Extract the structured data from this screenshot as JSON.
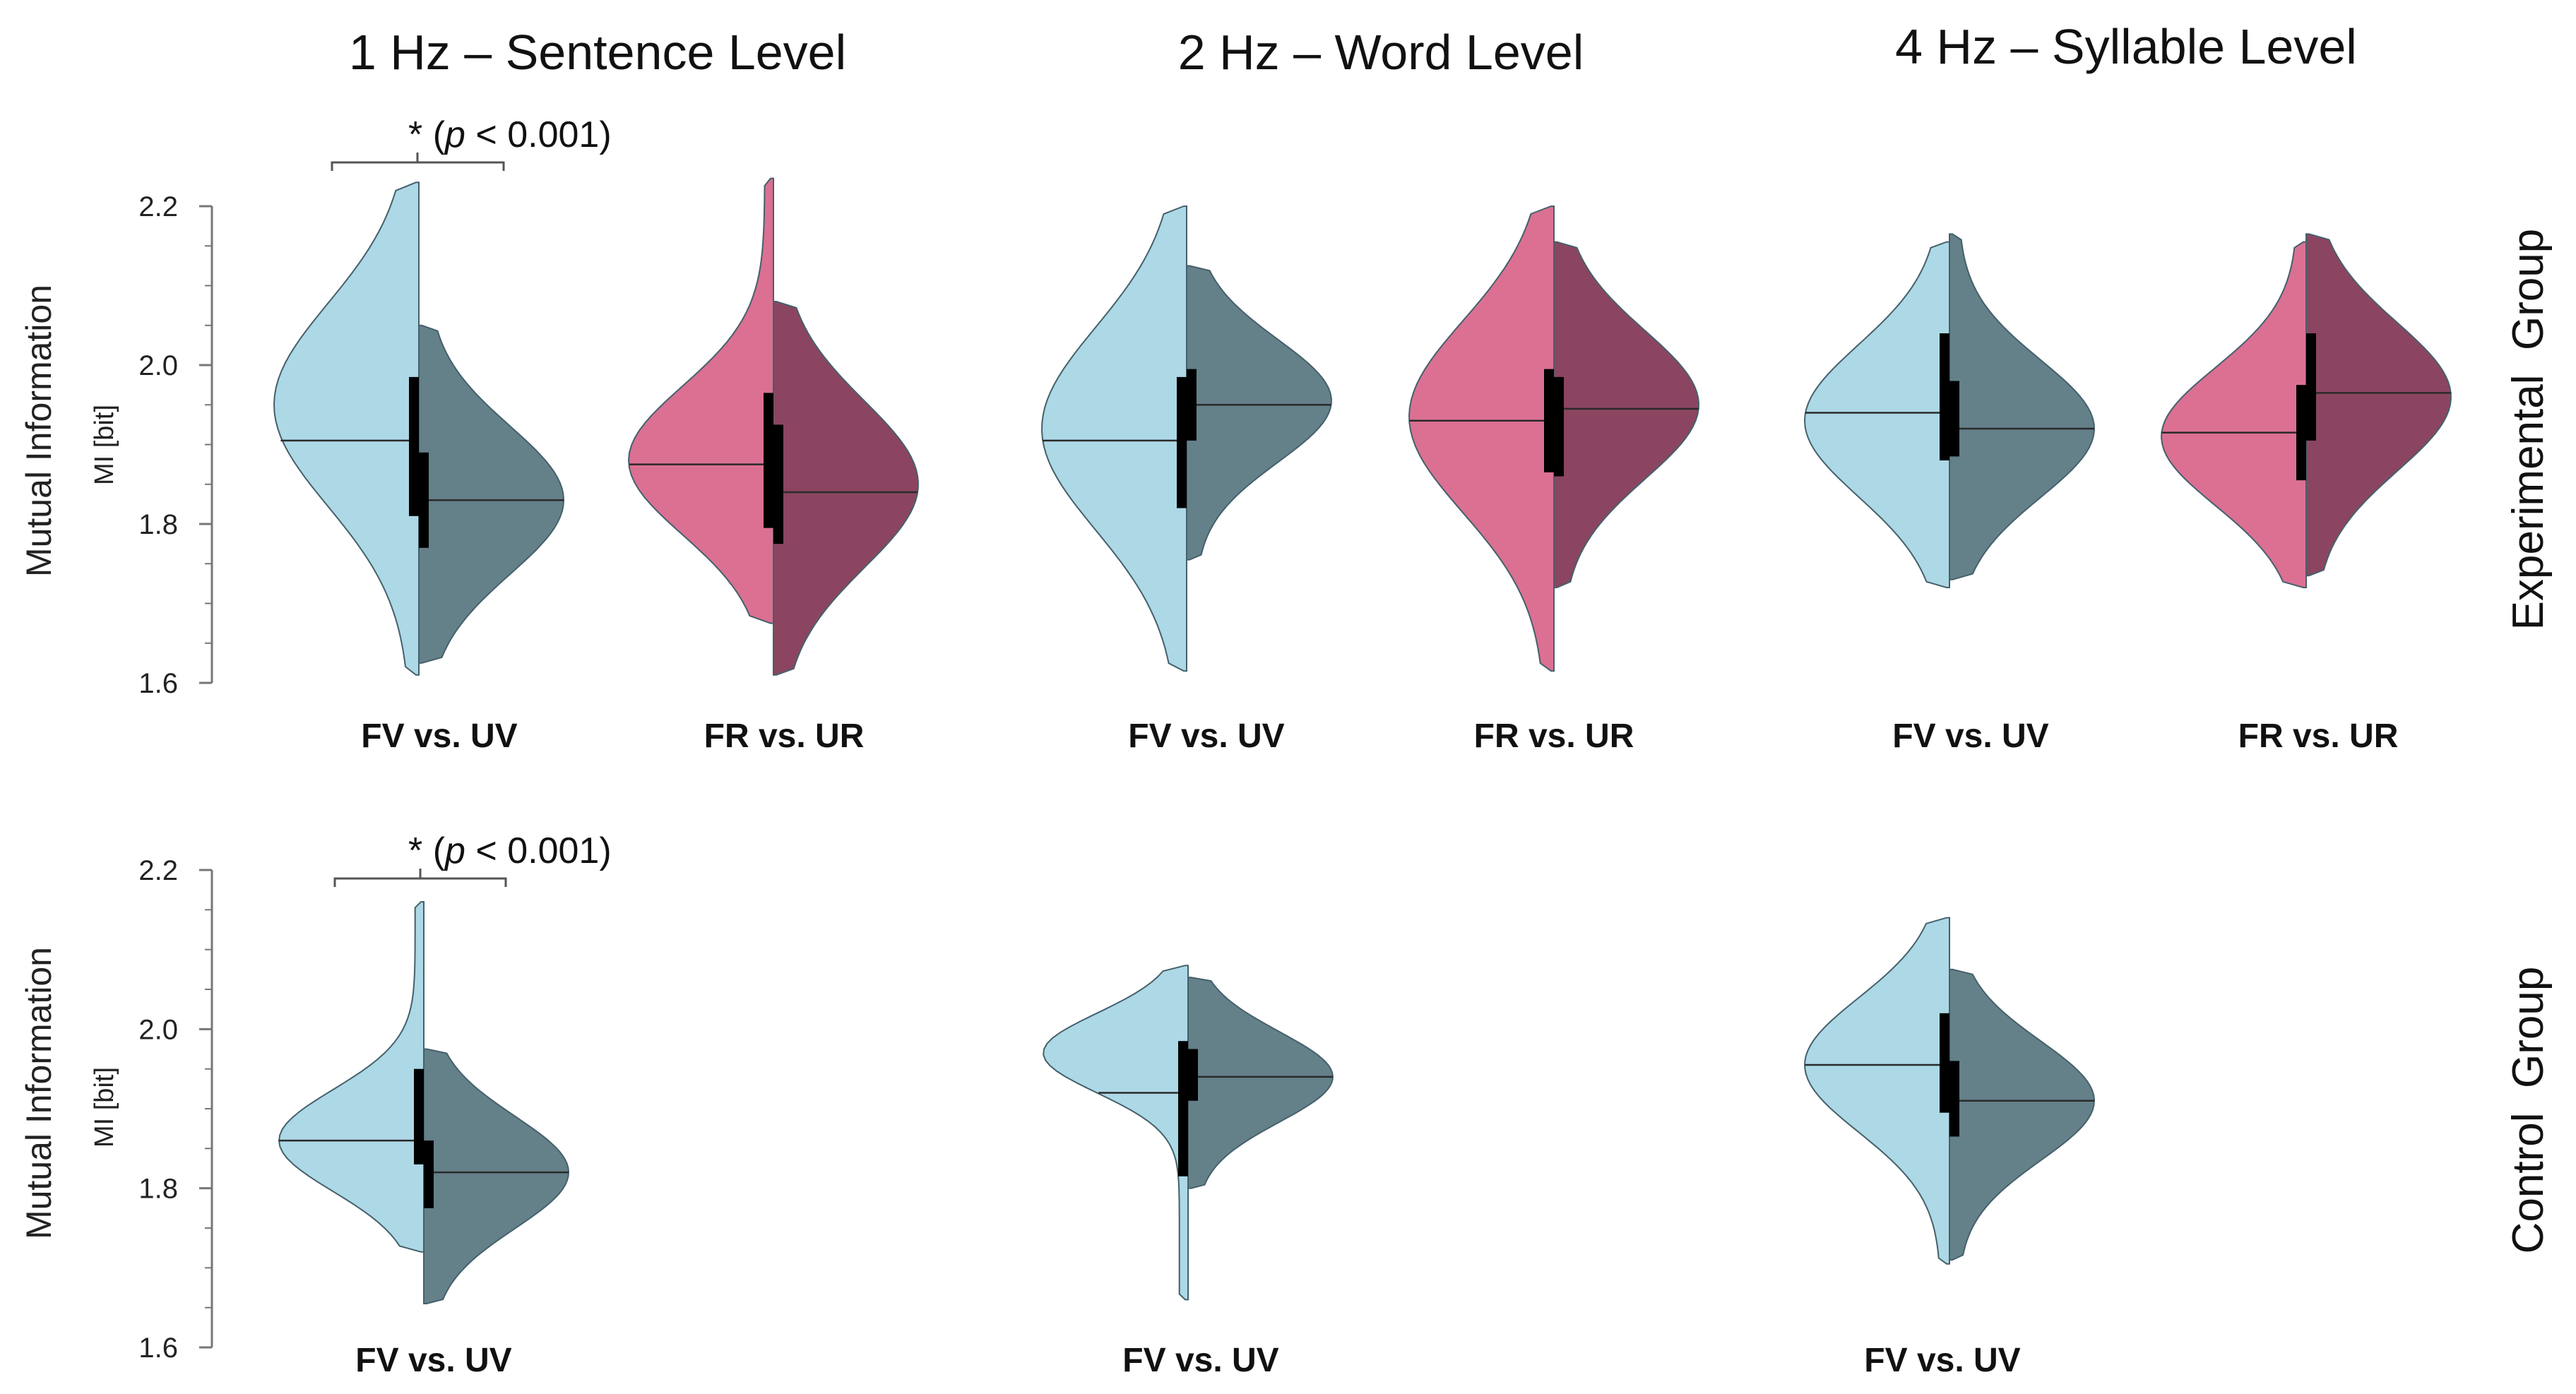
{
  "figure": {
    "column_titles": [
      "1 Hz – Sentence Level",
      "2 Hz – Word Level",
      "4 Hz – Syllable Level"
    ],
    "row_labels": [
      "Experimental  Group",
      "Control  Group"
    ],
    "ylabel_outer": "Mutual Information",
    "ylabel_inner": "MI [bit]",
    "significance": {
      "star": "*",
      "open": "(",
      "p_symbol": "p",
      "rest": " < 0.001)"
    }
  },
  "colors": {
    "fv_light": "#ADD8E6",
    "uv_dark": "#648089",
    "fr_pink": "#DB7093",
    "ur_dark": "#8B4560",
    "outline": "#45606b",
    "box": "#000000"
  },
  "chart_data": [
    {
      "type": "violin",
      "group": "Experimental Group",
      "ylim": [
        1.6,
        2.2
      ],
      "yticks": [
        1.6,
        1.8,
        2.0,
        2.2
      ],
      "xlabel": "",
      "ylabel": "MI [bit]",
      "panels": [
        {
          "column": "1 Hz – Sentence Level",
          "pairs": [
            {
              "label": "FV vs. UV",
              "significance": "* (p < 0.001)",
              "left": {
                "condition": "FV",
                "color": "fv_light",
                "median": 1.905,
                "min": 1.61,
                "max": 2.23,
                "mode": 1.95,
                "q1": 1.81,
                "q3": 1.985
              },
              "right": {
                "condition": "UV",
                "color": "uv_dark",
                "median": 1.83,
                "min": 1.625,
                "max": 2.05,
                "mode": 1.83,
                "q1": 1.77,
                "q3": 1.89
              }
            },
            {
              "label": "FR vs. UR",
              "significance": "",
              "left": {
                "condition": "FR",
                "color": "fr_pink",
                "median": 1.875,
                "min": 1.675,
                "max": 2.235,
                "mode": 1.88,
                "q1": 1.795,
                "q3": 1.965
              },
              "right": {
                "condition": "UR",
                "color": "ur_dark",
                "median": 1.84,
                "min": 1.61,
                "max": 2.08,
                "mode": 1.85,
                "q1": 1.775,
                "q3": 1.925
              }
            }
          ]
        },
        {
          "column": "2 Hz – Word Level",
          "pairs": [
            {
              "label": "FV vs. UV",
              "significance": "",
              "left": {
                "condition": "FV",
                "color": "fv_light",
                "median": 1.905,
                "min": 1.615,
                "max": 2.2,
                "mode": 1.92,
                "q1": 1.82,
                "q3": 1.985
              },
              "right": {
                "condition": "UV",
                "color": "uv_dark",
                "median": 1.95,
                "min": 1.755,
                "max": 2.125,
                "mode": 1.955,
                "q1": 1.905,
                "q3": 1.995
              }
            },
            {
              "label": "FR vs. UR",
              "significance": "",
              "left": {
                "condition": "FR",
                "color": "fr_pink",
                "median": 1.93,
                "min": 1.615,
                "max": 2.2,
                "mode": 1.935,
                "q1": 1.865,
                "q3": 1.995
              },
              "right": {
                "condition": "UR",
                "color": "ur_dark",
                "median": 1.945,
                "min": 1.72,
                "max": 2.155,
                "mode": 1.95,
                "q1": 1.86,
                "q3": 1.985
              }
            }
          ]
        },
        {
          "column": "4 Hz – Syllable Level",
          "pairs": [
            {
              "label": "FV vs. UV",
              "significance": "",
              "left": {
                "condition": "FV",
                "color": "fv_light",
                "median": 1.94,
                "min": 1.72,
                "max": 2.155,
                "mode": 1.93,
                "q1": 1.88,
                "q3": 2.04
              },
              "right": {
                "condition": "UV",
                "color": "uv_dark",
                "median": 1.92,
                "min": 1.73,
                "max": 2.165,
                "mode": 1.92,
                "q1": 1.885,
                "q3": 1.98
              }
            },
            {
              "label": "FR vs. UR",
              "significance": "",
              "left": {
                "condition": "FR",
                "color": "fr_pink",
                "median": 1.915,
                "min": 1.72,
                "max": 2.155,
                "mode": 1.91,
                "q1": 1.855,
                "q3": 1.975
              },
              "right": {
                "condition": "UR",
                "color": "ur_dark",
                "median": 1.965,
                "min": 1.735,
                "max": 2.165,
                "mode": 1.96,
                "q1": 1.905,
                "q3": 2.04
              }
            }
          ]
        }
      ]
    },
    {
      "type": "violin",
      "group": "Control Group",
      "ylim": [
        1.6,
        2.2
      ],
      "yticks": [
        1.6,
        1.8,
        2.0,
        2.2
      ],
      "xlabel": "",
      "ylabel": "MI [bit]",
      "panels": [
        {
          "column": "1 Hz – Sentence Level",
          "pairs": [
            {
              "label": "FV vs. UV",
              "significance": "* (p < 0.001)",
              "left": {
                "condition": "FV",
                "color": "fv_light",
                "median": 1.86,
                "min": 1.72,
                "max": 2.16,
                "mode": 1.86,
                "q1": 1.83,
                "q3": 1.95
              },
              "right": {
                "condition": "UV",
                "color": "uv_dark",
                "median": 1.82,
                "min": 1.655,
                "max": 1.975,
                "mode": 1.82,
                "q1": 1.775,
                "q3": 1.86
              }
            }
          ]
        },
        {
          "column": "2 Hz – Word Level",
          "pairs": [
            {
              "label": "FV vs. UV",
              "significance": "",
              "left": {
                "condition": "FV",
                "color": "fv_light",
                "median": 1.92,
                "min": 1.66,
                "max": 2.08,
                "mode": 1.97,
                "q1": 1.815,
                "q3": 1.985
              },
              "right": {
                "condition": "UV",
                "color": "uv_dark",
                "median": 1.94,
                "min": 1.8,
                "max": 2.065,
                "mode": 1.94,
                "q1": 1.91,
                "q3": 1.975
              }
            }
          ]
        },
        {
          "column": "4 Hz – Syllable Level",
          "pairs": [
            {
              "label": "FV vs. UV",
              "significance": "",
              "left": {
                "condition": "FV",
                "color": "fv_light",
                "median": 1.955,
                "min": 1.705,
                "max": 2.14,
                "mode": 1.955,
                "q1": 1.895,
                "q3": 2.02
              },
              "right": {
                "condition": "UV",
                "color": "uv_dark",
                "median": 1.91,
                "min": 1.71,
                "max": 2.075,
                "mode": 1.91,
                "q1": 1.865,
                "q3": 1.96
              }
            }
          ]
        }
      ]
    }
  ]
}
